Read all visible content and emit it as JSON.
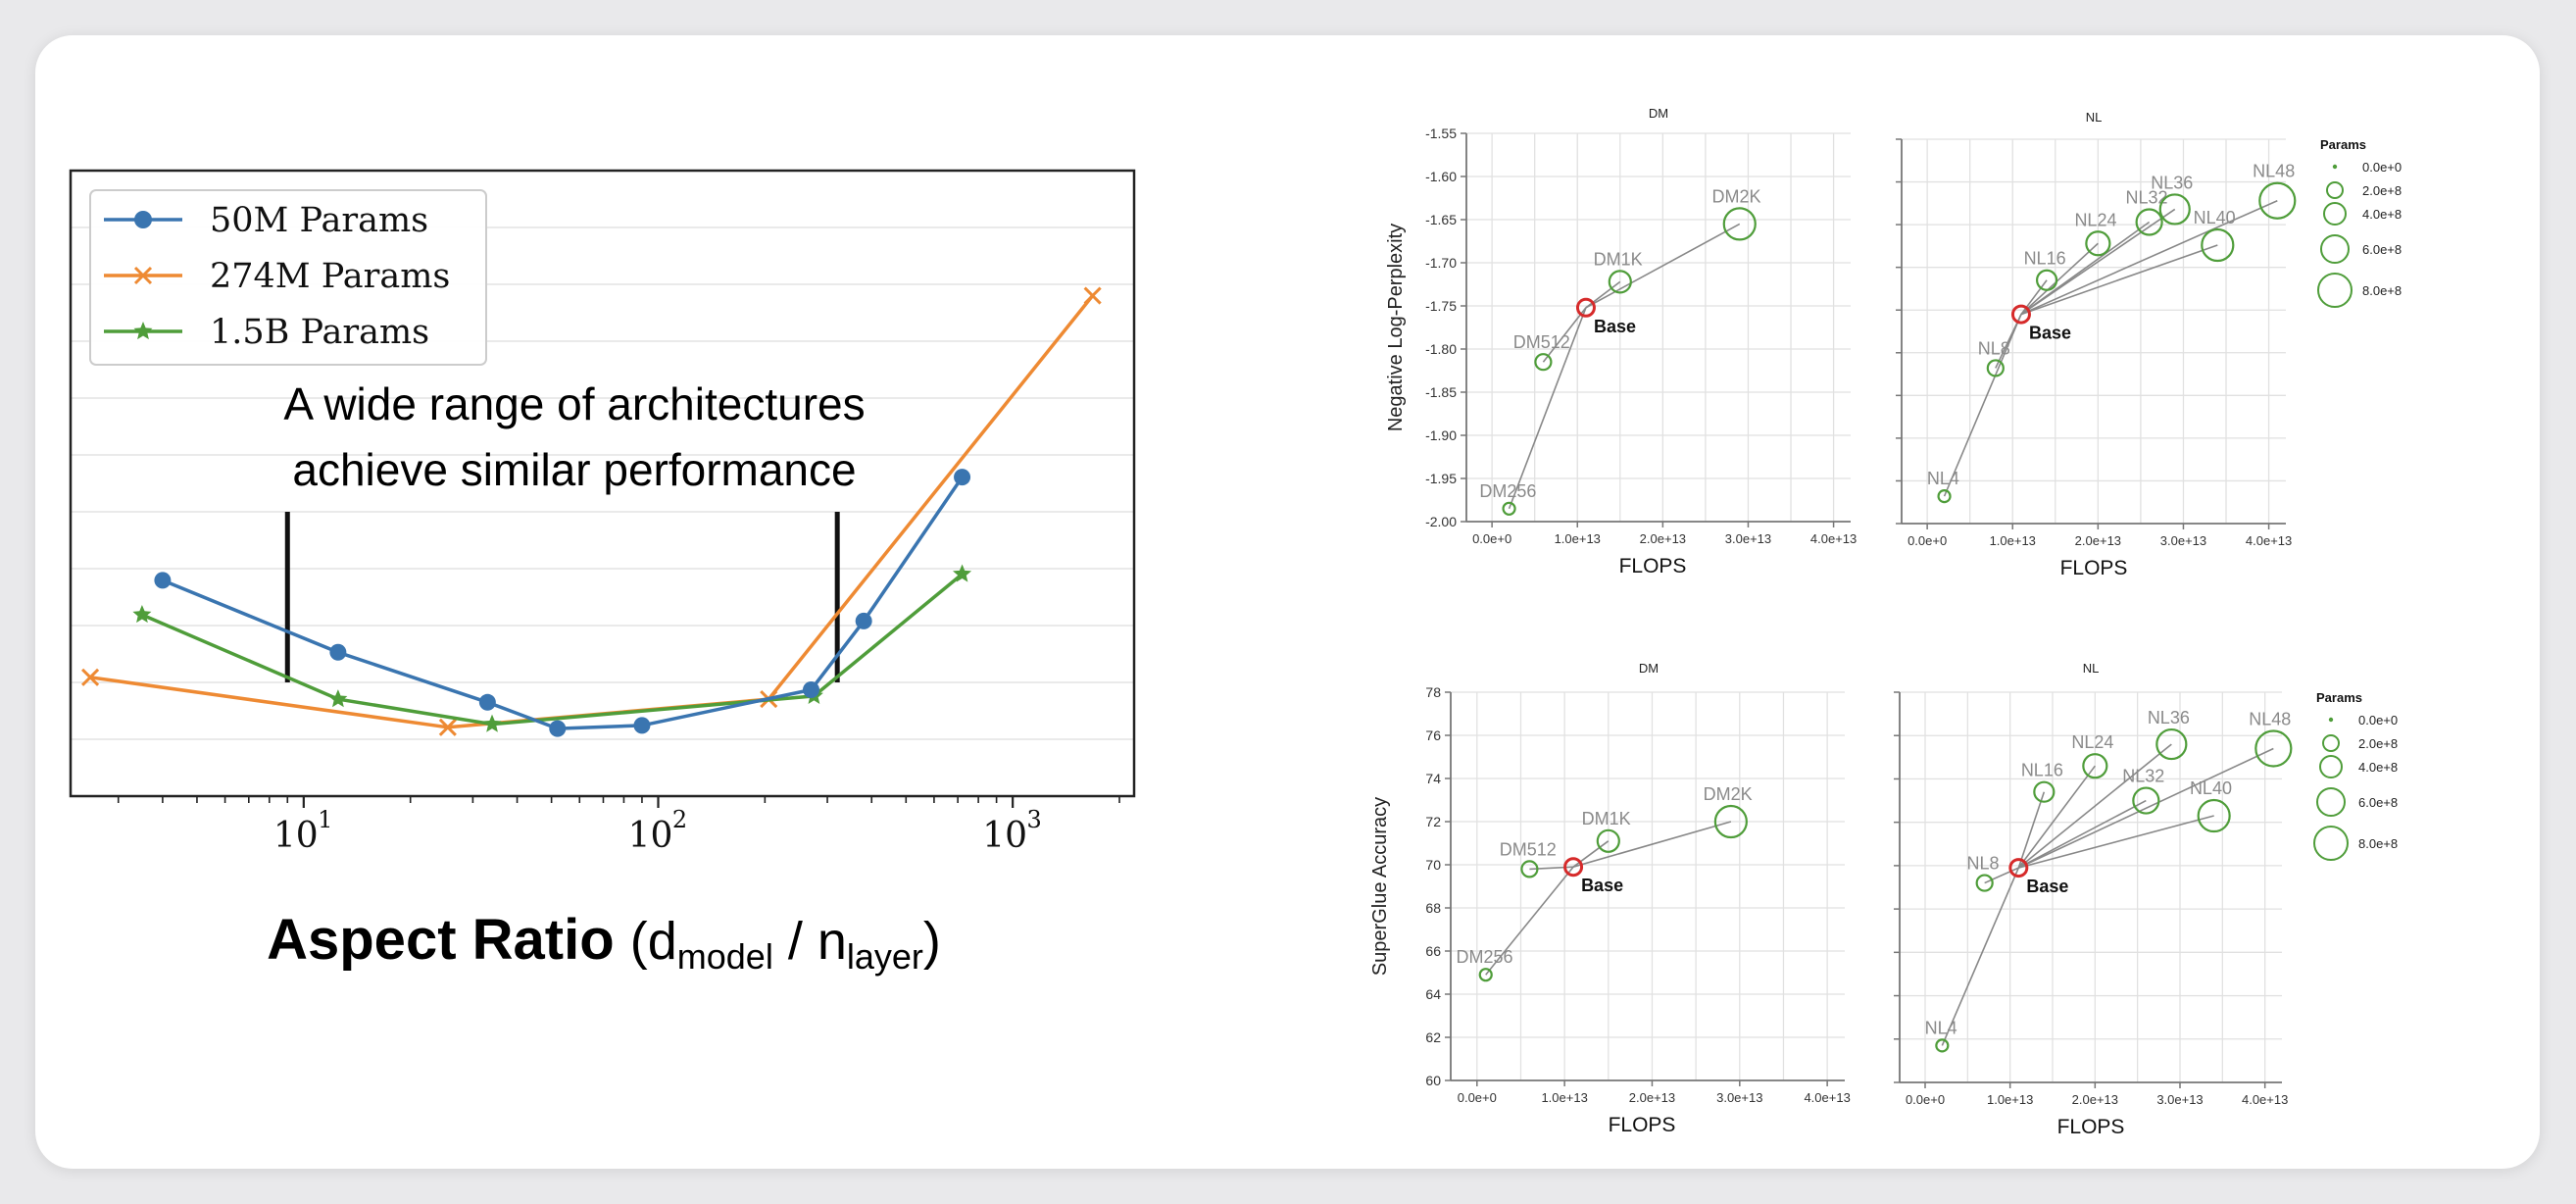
{
  "colors": {
    "blue": "#3a75b0",
    "orange": "#ee8a33",
    "green": "#4f9d3a",
    "grid": "#d9d9d9",
    "base_red": "#d62a2a",
    "sub_green": "#4f9d3a",
    "sub_line": "#888888",
    "label_grey": "#8a8a8a"
  },
  "chart_data": [
    {
      "type": "line",
      "xscale": "log",
      "xlim": [
        2.2,
        2200
      ],
      "ylim": [
        0,
        1
      ],
      "x_ticklabels": [
        "10",
        "10",
        "10"
      ],
      "x_tickexp": [
        "1",
        "2",
        "3"
      ],
      "x_ticks": [
        10,
        100,
        1000
      ],
      "legend_position": "top-left",
      "annotation": "A wide range of architectures achieve similar performance",
      "annotation_lines": [
        "A wide range of architectures",
        "achieve similar performance"
      ],
      "vlines": [
        9,
        320
      ],
      "xlabel": {
        "bold": "Aspect Ratio",
        "open": "(d",
        "sub1": "model",
        "mid": " / n",
        "sub2": "layer",
        "close": ")"
      },
      "series": [
        {
          "name": "50M Params",
          "marker": "circle",
          "color": "#3a75b0",
          "x": [
            4,
            12.5,
            33,
            52,
            90,
            270,
            380,
            720
          ],
          "y": [
            0.345,
            0.23,
            0.15,
            0.108,
            0.113,
            0.17,
            0.28,
            0.51
          ]
        },
        {
          "name": "274M Params",
          "marker": "x",
          "color": "#ee8a33",
          "x": [
            2.5,
            25.5,
            205,
            1680
          ],
          "y": [
            0.19,
            0.11,
            0.155,
            0.8
          ]
        },
        {
          "name": "1.5B Params",
          "marker": "star",
          "color": "#4f9d3a",
          "x": [
            3.5,
            12.5,
            34,
            275,
            720
          ],
          "y": [
            0.29,
            0.155,
            0.115,
            0.16,
            0.355
          ]
        }
      ]
    },
    {
      "type": "scatter",
      "title": "DM",
      "ylabel": "Negative Log-Perplexity",
      "xlabel": "FLOPS",
      "xlim": [
        -0.3,
        4.2
      ],
      "ylim": [
        -2.0,
        -1.55
      ],
      "y_ticks": [
        -2.0,
        -1.95,
        -1.9,
        -1.85,
        -1.8,
        -1.75,
        -1.7,
        -1.65,
        -1.6,
        -1.55
      ],
      "y_ticklabels": [
        "-2.00",
        "-1.95",
        "-1.90",
        "-1.85",
        "-1.80",
        "-1.75",
        "-1.70",
        "-1.65",
        "-1.60",
        "-1.55"
      ],
      "x_ticks": [
        0,
        1,
        2,
        3,
        4
      ],
      "x_ticklabels": [
        "0.0e+0",
        "1.0e+13",
        "2.0e+13",
        "3.0e+13",
        "4.0e+13"
      ],
      "base": {
        "label": "Base",
        "x": 1.1,
        "y": -1.752
      },
      "points": [
        {
          "label": "DM256",
          "x": 0.2,
          "y": -1.985,
          "r": 6
        },
        {
          "label": "DM512",
          "x": 0.6,
          "y": -1.815,
          "r": 8
        },
        {
          "label": "DM1K",
          "x": 1.5,
          "y": -1.722,
          "r": 11
        },
        {
          "label": "DM2K",
          "x": 2.9,
          "y": -1.655,
          "r": 16
        }
      ]
    },
    {
      "type": "scatter",
      "title": "NL",
      "xlabel": "FLOPS",
      "xlim": [
        -0.3,
        4.2
      ],
      "ylim": [
        -2.0,
        -1.55
      ],
      "x_ticks": [
        0,
        1,
        2,
        3,
        4
      ],
      "x_ticklabels": [
        "0.0e+0",
        "1.0e+13",
        "2.0e+13",
        "3.0e+13",
        "4.0e+13"
      ],
      "base": {
        "label": "Base",
        "x": 1.1,
        "y": -1.755
      },
      "legend": {
        "title": "Params",
        "labels": [
          "0.0e+0",
          "2.0e+8",
          "4.0e+8",
          "6.0e+8",
          "8.0e+8"
        ]
      },
      "points": [
        {
          "label": "NL4",
          "x": 0.2,
          "y": -1.968,
          "r": 6
        },
        {
          "label": "NL8",
          "x": 0.8,
          "y": -1.818,
          "r": 8
        },
        {
          "label": "NL16",
          "x": 1.4,
          "y": -1.715,
          "r": 10
        },
        {
          "label": "NL24",
          "x": 2.0,
          "y": -1.672,
          "r": 12
        },
        {
          "label": "NL32",
          "x": 2.6,
          "y": -1.647,
          "r": 13
        },
        {
          "label": "NL36",
          "x": 2.9,
          "y": -1.632,
          "r": 15
        },
        {
          "label": "NL40",
          "x": 3.4,
          "y": -1.674,
          "r": 16
        },
        {
          "label": "NL48",
          "x": 4.1,
          "y": -1.622,
          "r": 18
        }
      ]
    },
    {
      "type": "scatter",
      "title": "DM",
      "ylabel": "SuperGlue Accuracy",
      "xlabel": "FLOPS",
      "xlim": [
        -0.3,
        4.2
      ],
      "ylim": [
        60,
        78
      ],
      "y_ticks": [
        60,
        62,
        64,
        66,
        68,
        70,
        72,
        74,
        76,
        78
      ],
      "y_ticklabels": [
        "60",
        "62",
        "64",
        "66",
        "68",
        "70",
        "72",
        "74",
        "76",
        "78"
      ],
      "x_ticks": [
        0,
        1,
        2,
        3,
        4
      ],
      "x_ticklabels": [
        "0.0e+0",
        "1.0e+13",
        "2.0e+13",
        "3.0e+13",
        "4.0e+13"
      ],
      "base": {
        "label": "Base",
        "x": 1.1,
        "y": 69.9
      },
      "points": [
        {
          "label": "DM256",
          "x": 0.1,
          "y": 64.9,
          "r": 6
        },
        {
          "label": "DM512",
          "x": 0.6,
          "y": 69.8,
          "r": 8
        },
        {
          "label": "DM1K",
          "x": 1.5,
          "y": 71.1,
          "r": 11
        },
        {
          "label": "DM2K",
          "x": 2.9,
          "y": 72.0,
          "r": 16
        }
      ]
    },
    {
      "type": "scatter",
      "title": "NL",
      "xlabel": "FLOPS",
      "xlim": [
        -0.3,
        4.2
      ],
      "ylim": [
        60,
        78
      ],
      "x_ticks": [
        0,
        1,
        2,
        3,
        4
      ],
      "x_ticklabels": [
        "0.0e+0",
        "1.0e+13",
        "2.0e+13",
        "3.0e+13",
        "4.0e+13"
      ],
      "base": {
        "label": "Base",
        "x": 1.1,
        "y": 69.9
      },
      "legend": {
        "title": "Params",
        "labels": [
          "0.0e+0",
          "2.0e+8",
          "4.0e+8",
          "6.0e+8",
          "8.0e+8"
        ]
      },
      "points": [
        {
          "label": "NL4",
          "x": 0.2,
          "y": 61.7,
          "r": 6
        },
        {
          "label": "NL8",
          "x": 0.7,
          "y": 69.2,
          "r": 8
        },
        {
          "label": "NL16",
          "x": 1.4,
          "y": 73.4,
          "r": 10
        },
        {
          "label": "NL24",
          "x": 2.0,
          "y": 74.6,
          "r": 12
        },
        {
          "label": "NL32",
          "x": 2.6,
          "y": 73.0,
          "r": 13
        },
        {
          "label": "NL36",
          "x": 2.9,
          "y": 75.6,
          "r": 15
        },
        {
          "label": "NL40",
          "x": 3.4,
          "y": 72.3,
          "r": 16
        },
        {
          "label": "NL48",
          "x": 4.1,
          "y": 75.4,
          "r": 18
        }
      ]
    }
  ]
}
